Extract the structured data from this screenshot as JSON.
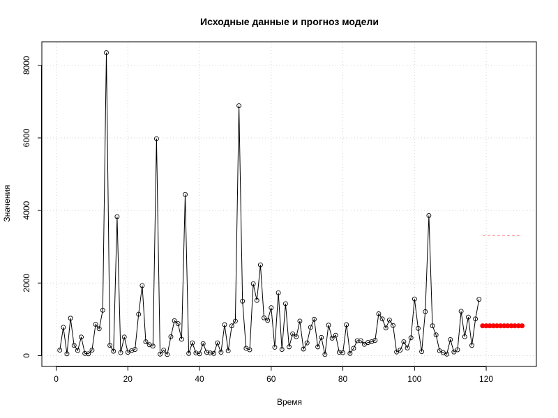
{
  "chart_data": {
    "type": "line",
    "title": "Исходные данные и прогноз модели",
    "xlabel": "Время",
    "ylabel": "Значения",
    "xlim": [
      -4,
      134
    ],
    "ylim": [
      -300,
      8650
    ],
    "x_ticks": [
      0,
      20,
      40,
      60,
      80,
      100,
      120
    ],
    "y_ticks": [
      0,
      2000,
      4000,
      6000,
      8000
    ],
    "grid": true,
    "series": [
      {
        "type": "line+points",
        "color": "#000000",
        "x_start": 1,
        "values": [
          150,
          780,
          50,
          1030,
          280,
          140,
          510,
          60,
          50,
          150,
          860,
          740,
          1250,
          8350,
          280,
          120,
          3830,
          80,
          510,
          90,
          130,
          170,
          1140,
          1930,
          380,
          300,
          260,
          5980,
          40,
          150,
          30,
          520,
          960,
          880,
          450,
          4440,
          60,
          350,
          70,
          50,
          330,
          90,
          70,
          60,
          350,
          90,
          850,
          130,
          820,
          950,
          6890,
          1500,
          200,
          160,
          1980,
          1520,
          2500,
          1040,
          970,
          1320,
          230,
          1730,
          170,
          1430,
          240,
          600,
          520,
          950,
          180,
          350,
          780,
          1000,
          240,
          500,
          30,
          840,
          480,
          560,
          90,
          80,
          850,
          60,
          200,
          410,
          410,
          310,
          360,
          380,
          420,
          1150,
          1010,
          760,
          980,
          830,
          100,
          150,
          380,
          210,
          490,
          1560,
          750,
          110,
          1210,
          3860,
          820,
          570,
          130,
          80,
          40,
          440,
          100,
          160,
          1220,
          520,
          1060,
          280,
          1010,
          1550
        ]
      },
      {
        "type": "points",
        "color": "#ff0000",
        "x": [
          119,
          120,
          121,
          122,
          123,
          124,
          125,
          126,
          127,
          128,
          129,
          130
        ],
        "values": [
          820,
          820,
          820,
          820,
          820,
          820,
          820,
          820,
          820,
          820,
          820,
          820
        ]
      },
      {
        "type": "dashed-line",
        "color": "#ff6b6b",
        "x": [
          119,
          130
        ],
        "values": [
          3310,
          3310
        ]
      }
    ]
  }
}
